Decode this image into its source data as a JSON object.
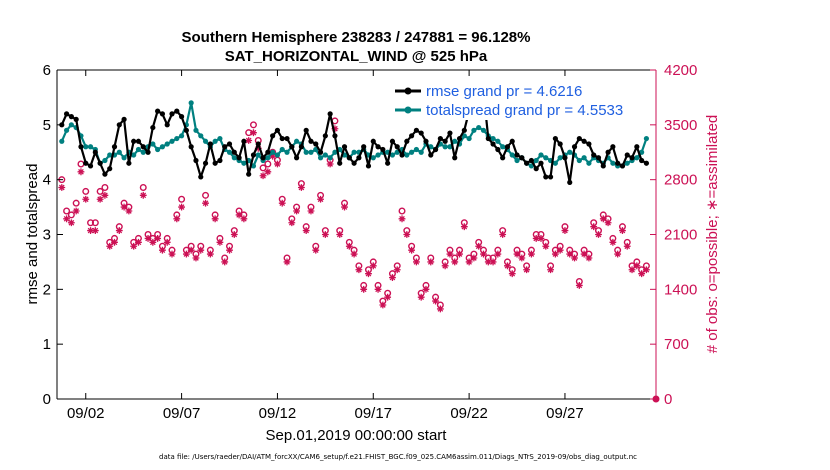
{
  "chart_data": {
    "type": "line",
    "title": "Southern Hemisphere 238283 / 247881 = 96.128%",
    "subtitle": "SAT_HORIZONTAL_WIND @ 525 hPa",
    "xlabel": "Sep.01,2019 00:00:00 start",
    "ylabel_left": "rmse and totalspread",
    "ylabel_right": "# of obs: o=possible; ∗=assimilated",
    "footnote": "data file: /Users/raeder/DAI/ATM_forcXX/CAM6_setup/f.e21.FHIST_BGC.f09_025.CAM6assim.011/Diags_NTrS_2019-09/obs_diag_output.nc",
    "xlim": [
      0.0,
      31.25
    ],
    "ylim_left": [
      0,
      6
    ],
    "ylim_right": [
      0,
      4200
    ],
    "x_ticks": [
      1.5,
      6.5,
      11.5,
      16.5,
      21.5,
      26.5
    ],
    "x_tick_labels": [
      "09/02",
      "09/07",
      "09/12",
      "09/17",
      "09/22",
      "09/27"
    ],
    "y_left_ticks": [
      0,
      1,
      2,
      3,
      4,
      5,
      6
    ],
    "y_left_tick_labels": [
      "0",
      "1",
      "2",
      "3",
      "4",
      "5",
      "6"
    ],
    "y_right_ticks": [
      0,
      700,
      1400,
      2100,
      2800,
      3500,
      4200
    ],
    "y_right_tick_labels": [
      "0",
      "700",
      "1400",
      "2100",
      "2800",
      "3500",
      "4200"
    ],
    "x": [
      0.25,
      0.5,
      0.75,
      1.0,
      1.25,
      1.5,
      1.75,
      2.0,
      2.25,
      2.5,
      2.75,
      3.0,
      3.25,
      3.5,
      3.75,
      4.0,
      4.25,
      4.5,
      4.75,
      5.0,
      5.25,
      5.5,
      5.75,
      6.0,
      6.25,
      6.5,
      6.75,
      7.0,
      7.25,
      7.5,
      7.75,
      8.0,
      8.25,
      8.5,
      8.75,
      9.0,
      9.25,
      9.5,
      9.75,
      10.0,
      10.25,
      10.5,
      10.75,
      11.0,
      11.25,
      11.5,
      11.75,
      12.0,
      12.25,
      12.5,
      12.75,
      13.0,
      13.25,
      13.5,
      13.75,
      14.0,
      14.25,
      14.5,
      14.75,
      15.0,
      15.25,
      15.5,
      15.75,
      16.0,
      16.25,
      16.5,
      16.75,
      17.0,
      17.25,
      17.5,
      17.75,
      18.0,
      18.25,
      18.5,
      18.75,
      19.0,
      19.25,
      19.5,
      19.75,
      20.0,
      20.25,
      20.5,
      20.75,
      21.0,
      21.25,
      21.5,
      21.75,
      22.0,
      22.25,
      22.5,
      22.75,
      23.0,
      23.25,
      23.5,
      23.75,
      24.0,
      24.25,
      24.5,
      24.75,
      25.0,
      25.25,
      25.5,
      25.75,
      26.0,
      26.25,
      26.5,
      26.75,
      27.0,
      27.25,
      27.5,
      27.75,
      28.0,
      28.25,
      28.5,
      28.75,
      29.0,
      29.25,
      29.5,
      29.75,
      30.0,
      30.25,
      30.5,
      30.75
    ],
    "series": [
      {
        "name": "rmse",
        "legend": "rmse grand pr = 4.6216",
        "color": "#000000",
        "marker": "circle",
        "values": [
          5.0,
          5.2,
          5.15,
          5.1,
          4.6,
          4.3,
          4.25,
          4.5,
          4.3,
          4.1,
          4.2,
          4.6,
          5.0,
          5.1,
          4.3,
          4.7,
          4.7,
          4.6,
          4.5,
          4.95,
          5.25,
          5.2,
          5.0,
          5.2,
          5.25,
          5.15,
          4.9,
          4.6,
          4.35,
          4.05,
          4.3,
          4.65,
          4.3,
          4.35,
          4.6,
          4.65,
          4.5,
          4.4,
          4.7,
          4.1,
          4.45,
          4.65,
          4.4,
          4.5,
          4.8,
          4.9,
          4.75,
          4.75,
          4.6,
          4.4,
          4.6,
          4.9,
          4.7,
          4.65,
          4.5,
          4.8,
          5.2,
          4.8,
          4.3,
          4.6,
          4.4,
          4.3,
          4.4,
          4.6,
          4.25,
          4.7,
          4.6,
          4.55,
          4.3,
          4.7,
          4.6,
          4.45,
          4.7,
          4.8,
          4.9,
          4.85,
          4.7,
          4.45,
          4.55,
          4.75,
          4.7,
          4.85,
          4.4,
          4.75,
          4.9,
          5.25,
          5.3,
          5.2,
          5.6,
          4.75,
          4.65,
          4.55,
          4.4,
          4.6,
          4.7,
          4.45,
          4.4,
          4.3,
          4.35,
          4.2,
          4.3,
          4.05,
          4.05,
          4.75,
          4.65,
          4.4,
          3.95,
          4.6,
          4.75,
          4.7,
          4.65,
          4.45,
          4.4,
          4.25,
          4.5,
          4.6,
          4.3,
          4.25,
          4.45,
          4.4,
          4.6,
          4.35,
          4.3
        ]
      },
      {
        "name": "totalspread",
        "legend": "totalspread grand pr = 4.5533",
        "color": "#008080",
        "marker": "circle",
        "values": [
          4.7,
          4.9,
          5.0,
          4.95,
          4.8,
          4.6,
          4.6,
          4.55,
          4.3,
          4.35,
          4.45,
          4.45,
          4.5,
          4.4,
          4.5,
          4.45,
          4.55,
          4.5,
          4.6,
          4.65,
          4.55,
          4.6,
          4.65,
          4.7,
          4.75,
          4.8,
          5.0,
          5.4,
          4.9,
          4.8,
          4.7,
          4.6,
          4.7,
          4.75,
          4.55,
          4.5,
          4.4,
          4.35,
          4.3,
          4.35,
          4.25,
          4.45,
          4.35,
          4.4,
          4.5,
          4.45,
          4.55,
          4.5,
          4.6,
          4.7,
          4.65,
          4.5,
          4.5,
          4.55,
          4.4,
          4.45,
          4.4,
          4.5,
          4.55,
          4.45,
          4.4,
          4.5,
          4.5,
          4.55,
          4.45,
          4.4,
          4.45,
          4.5,
          4.5,
          4.45,
          4.5,
          4.55,
          4.45,
          4.5,
          4.55,
          4.5,
          4.65,
          4.6,
          4.55,
          4.65,
          4.6,
          4.6,
          4.7,
          4.65,
          4.8,
          4.75,
          4.9,
          4.95,
          4.9,
          4.8,
          4.75,
          4.7,
          4.6,
          4.55,
          4.45,
          4.35,
          4.4,
          4.3,
          4.25,
          4.35,
          4.45,
          4.4,
          4.35,
          4.3,
          4.4,
          4.45,
          4.5,
          4.45,
          4.35,
          4.4,
          4.3,
          4.4,
          4.35,
          4.3,
          4.4,
          4.3,
          4.25,
          4.25,
          4.3,
          4.35,
          4.4,
          4.5,
          4.75
        ]
      },
      {
        "name": "obs_possible",
        "color": "#cc1155",
        "marker": "o",
        "axis": "right",
        "values": [
          2800,
          2400,
          2350,
          2500,
          3000,
          2650,
          2250,
          2250,
          2650,
          2700,
          2000,
          2050,
          2200,
          2500,
          2450,
          2000,
          2050,
          2700,
          2100,
          2050,
          2100,
          1950,
          2050,
          1900,
          2350,
          2550,
          1900,
          1950,
          1850,
          1950,
          2600,
          1900,
          2350,
          2050,
          1800,
          1950,
          2150,
          2400,
          2350,
          3400,
          3500,
          3300,
          2950,
          3000,
          3150,
          3050,
          2550,
          1800,
          2300,
          2450,
          2750,
          2200,
          2450,
          1950,
          2600,
          2150,
          3050,
          3550,
          2150,
          2500,
          2000,
          1900,
          1700,
          1450,
          1650,
          1750,
          1450,
          1250,
          1350,
          1600,
          1700,
          2400,
          2150,
          1950,
          1800,
          1350,
          1450,
          1800,
          1300,
          1200,
          1750,
          1900,
          1800,
          1900,
          2250,
          1800,
          1850,
          2000,
          1900,
          1800,
          1800,
          1900,
          2150,
          1750,
          1650,
          1900,
          1850,
          1700,
          1900,
          2100,
          2100,
          2000,
          1700,
          1900,
          1950,
          2200,
          1900,
          1850,
          1500,
          1900,
          1850,
          2250,
          2150,
          2350,
          2300,
          2050,
          1900,
          2200,
          2000,
          1700,
          1750,
          1650,
          1700
        ]
      },
      {
        "name": "obs_assimilated",
        "color": "#cc1155",
        "marker": "*",
        "axis": "right",
        "values": [
          2700,
          2300,
          2250,
          2400,
          2900,
          2550,
          2150,
          2150,
          2550,
          2600,
          1950,
          2000,
          2150,
          2450,
          2400,
          1950,
          2000,
          2600,
          2050,
          2000,
          2050,
          1900,
          2000,
          1850,
          2300,
          2450,
          1850,
          1900,
          1800,
          1900,
          2500,
          1850,
          2300,
          2000,
          1750,
          1900,
          2100,
          2350,
          2300,
          3300,
          3400,
          3200,
          2850,
          2900,
          3100,
          3000,
          2500,
          1750,
          2250,
          2400,
          2700,
          2150,
          2400,
          1900,
          2550,
          2100,
          3000,
          3450,
          2100,
          2450,
          1950,
          1850,
          1650,
          1400,
          1600,
          1700,
          1400,
          1200,
          1300,
          1550,
          1650,
          2300,
          2100,
          1900,
          1750,
          1300,
          1400,
          1750,
          1250,
          1150,
          1700,
          1850,
          1750,
          1850,
          2200,
          1750,
          1800,
          1950,
          1850,
          1750,
          1750,
          1850,
          2100,
          1700,
          1600,
          1850,
          1800,
          1650,
          1850,
          2050,
          2050,
          1950,
          1650,
          1850,
          1900,
          2150,
          1850,
          1800,
          1450,
          1850,
          1800,
          2200,
          2100,
          2300,
          2250,
          2000,
          1850,
          2150,
          1950,
          1650,
          1700,
          1600,
          1650
        ]
      }
    ],
    "end_marker": {
      "x": 31.25,
      "y_right": 0
    }
  }
}
